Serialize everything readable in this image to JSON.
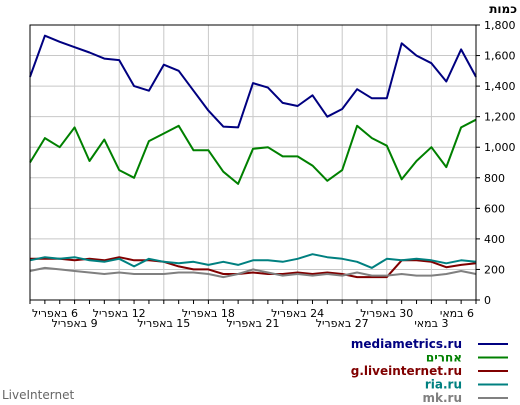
{
  "brand": "LiveInternet",
  "chart_data": {
    "type": "line",
    "ylabel": "כמות",
    "ylim": [
      0,
      1800
    ],
    "yticks": [
      0,
      200,
      400,
      600,
      800,
      1000,
      1200,
      1400,
      1600,
      1800
    ],
    "ytick_labels": [
      "0",
      "200",
      "400",
      "600",
      "800",
      "1,000",
      "1,200",
      "1,400",
      "1,600",
      "1,800"
    ],
    "grid": true,
    "legend_position": "bottom-right",
    "x_dates": [
      "6 באפריל",
      "7 באפריל",
      "8 באפריל",
      "9 באפריל",
      "10 באפריל",
      "11 באפריל",
      "12 באפריל",
      "13 באפריל",
      "14 באפריל",
      "15 באפריל",
      "16 באפריל",
      "17 באפריל",
      "18 באפריל",
      "19 באפריל",
      "20 באפריל",
      "21 באפריל",
      "22 באפריל",
      "23 באפריל",
      "24 באפריל",
      "25 באפריל",
      "26 באפריל",
      "27 באפריל",
      "28 באפריל",
      "29 באפריל",
      "30 באפריל",
      "1 במאי",
      "2 במאי",
      "3 במאי",
      "4 במאי",
      "5 במאי",
      "6 במאי"
    ],
    "x_tick_labels": [
      {
        "index": 0,
        "label": "6 באפריל",
        "row": 1
      },
      {
        "index": 3,
        "label": "9 באפריל",
        "row": 2
      },
      {
        "index": 6,
        "label": "12 באפריל",
        "row": 1
      },
      {
        "index": 9,
        "label": "15 באפריל",
        "row": 2
      },
      {
        "index": 12,
        "label": "18 באפריל",
        "row": 1
      },
      {
        "index": 15,
        "label": "21 באפריל",
        "row": 2
      },
      {
        "index": 18,
        "label": "24 באפריל",
        "row": 1
      },
      {
        "index": 21,
        "label": "27 באפריל",
        "row": 2
      },
      {
        "index": 24,
        "label": "30 באפריל",
        "row": 1
      },
      {
        "index": 27,
        "label": "3 במאי",
        "row": 2
      },
      {
        "index": 30,
        "label": "6 במאי",
        "row": 1
      }
    ],
    "series": [
      {
        "name": "mediametrics.ru",
        "color": "#000080",
        "values": [
          1460,
          1730,
          1690,
          1655,
          1620,
          1580,
          1570,
          1400,
          1370,
          1540,
          1500,
          1370,
          1240,
          1135,
          1130,
          1420,
          1390,
          1290,
          1270,
          1340,
          1200,
          1250,
          1380,
          1320,
          1320,
          1680,
          1600,
          1550,
          1430,
          1640,
          1460
        ]
      },
      {
        "name": "אחרים",
        "color": "#008000",
        "values": [
          900,
          1060,
          1000,
          1130,
          910,
          1050,
          850,
          800,
          1040,
          1090,
          1140,
          980,
          980,
          840,
          760,
          990,
          1000,
          940,
          940,
          880,
          780,
          850,
          1140,
          1060,
          1010,
          790,
          910,
          1000,
          870,
          1130,
          1180
        ]
      },
      {
        "name": "g.liveinternet.ru",
        "color": "#800000",
        "values": [
          270,
          270,
          270,
          260,
          270,
          260,
          280,
          260,
          260,
          250,
          220,
          200,
          200,
          170,
          170,
          180,
          170,
          170,
          180,
          170,
          180,
          170,
          150,
          150,
          150,
          260,
          260,
          250,
          215,
          230,
          240
        ]
      },
      {
        "name": "ria.ru",
        "color": "#008080",
        "values": [
          260,
          280,
          270,
          280,
          260,
          250,
          270,
          220,
          270,
          250,
          240,
          250,
          230,
          250,
          230,
          260,
          260,
          250,
          270,
          300,
          280,
          270,
          250,
          210,
          270,
          260,
          270,
          260,
          240,
          260,
          250
        ]
      },
      {
        "name": "mk.ru",
        "color": "#808080",
        "values": [
          190,
          210,
          200,
          190,
          180,
          170,
          180,
          170,
          170,
          170,
          180,
          180,
          170,
          150,
          170,
          200,
          180,
          160,
          170,
          160,
          170,
          160,
          180,
          160,
          160,
          170,
          160,
          160,
          170,
          190,
          170
        ]
      }
    ]
  }
}
